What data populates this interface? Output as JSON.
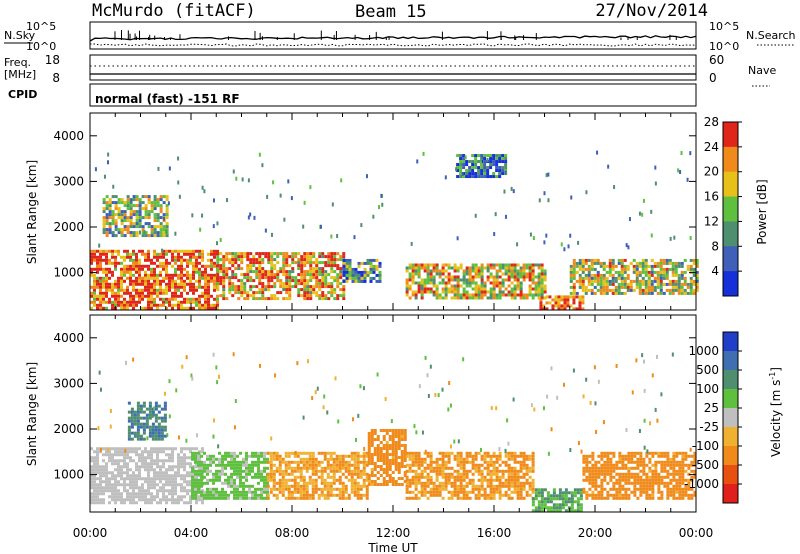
{
  "header": {
    "station": "McMurdo (fitACF)",
    "beam": "Beam 15",
    "date": "27/Nov/2014"
  },
  "top_panels": {
    "nsky_label": "N.Sky",
    "nsky_ticks": [
      "10^5",
      "10^0"
    ],
    "nsearch_label": "N.Search",
    "nsearch_ticks": [
      "10^5",
      "10^0"
    ],
    "freq_label": "Freq.",
    "freq_unit": "[MHz]",
    "freq_ticks": [
      "18",
      "8"
    ],
    "nave_label": "Nave",
    "nave_ticks": [
      "60",
      "0"
    ],
    "cpid_label": "CPID",
    "cpid_value": "normal (fast) -151 RF"
  },
  "chart_data": [
    {
      "type": "heatmap",
      "panel": "power",
      "xlabel": "Time UT",
      "x_ticks": [
        "00:00",
        "04:00",
        "08:00",
        "12:00",
        "16:00",
        "20:00",
        "00:00"
      ],
      "xlim_hours": [
        0,
        24
      ],
      "ylabel": "Slant Range [km]",
      "y_ticks": [
        1000,
        2000,
        3000,
        4000
      ],
      "ylim": [
        180,
        4500
      ],
      "colorbar_label": "Power [dB]",
      "colorbar_ticks": [
        4,
        8,
        12,
        16,
        20,
        24,
        28
      ],
      "colorbar_colors": [
        "#1530d8",
        "#3f5fb8",
        "#4d8f6f",
        "#5fc03f",
        "#e8c01a",
        "#f08a1a",
        "#e0261a"
      ],
      "scatter_regions": [
        {
          "t0": 0.0,
          "t1": 5.0,
          "r0": 250,
          "r1": 1500,
          "level": 24
        },
        {
          "t0": 0.5,
          "t1": 3.0,
          "r0": 1800,
          "r1": 2700,
          "level": 14
        },
        {
          "t0": 5.0,
          "t1": 10.0,
          "r0": 450,
          "r1": 1450,
          "level": 20
        },
        {
          "t0": 10.0,
          "t1": 11.5,
          "r0": 800,
          "r1": 1300,
          "level": 10
        },
        {
          "t0": 12.5,
          "t1": 18.0,
          "r0": 450,
          "r1": 1200,
          "level": 18
        },
        {
          "t0": 17.8,
          "t1": 19.5,
          "r0": 200,
          "r1": 500,
          "level": 26
        },
        {
          "t0": 19.0,
          "t1": 24.0,
          "r0": 550,
          "r1": 1300,
          "level": 16
        },
        {
          "t0": 14.5,
          "t1": 16.5,
          "r0": 3100,
          "r1": 3600,
          "level": 6
        }
      ]
    },
    {
      "type": "heatmap",
      "panel": "velocity",
      "xlabel": "Time UT",
      "x_ticks": [
        "00:00",
        "04:00",
        "08:00",
        "12:00",
        "16:00",
        "20:00",
        "00:00"
      ],
      "xlim_hours": [
        0,
        24
      ],
      "ylabel": "Slant Range [km]",
      "y_ticks": [
        1000,
        2000,
        3000,
        4000
      ],
      "ylim": [
        180,
        4500
      ],
      "colorbar_label": "Velocity [m s",
      "colorbar_label_sup": "-1",
      "colorbar_label_end": "]",
      "colorbar_ticks": [
        "1000",
        "500",
        "100",
        "25",
        "-25",
        "-100",
        "-500",
        "-1000"
      ],
      "colorbar_colors": [
        "#1f3fc8",
        "#3f6fb0",
        "#4f8f6f",
        "#5fc03f",
        "#bfbfbf",
        "#f0b030",
        "#f08a1a",
        "#e85010",
        "#e0201a"
      ],
      "scatter_regions": [
        {
          "t0": 0.0,
          "t1": 4.5,
          "r0": 400,
          "r1": 1600,
          "level": 1
        },
        {
          "t0": 1.5,
          "t1": 3.0,
          "r0": 1800,
          "r1": 2600,
          "level": 500
        },
        {
          "t0": 4.0,
          "t1": 7.0,
          "r0": 500,
          "r1": 1500,
          "level": 50
        },
        {
          "t0": 7.0,
          "t1": 11.0,
          "r0": 500,
          "r1": 1500,
          "level": -100
        },
        {
          "t0": 11.0,
          "t1": 12.5,
          "r0": 800,
          "r1": 2000,
          "level": -200
        },
        {
          "t0": 12.5,
          "t1": 17.5,
          "r0": 500,
          "r1": 1500,
          "level": -120
        },
        {
          "t0": 17.5,
          "t1": 19.5,
          "r0": 200,
          "r1": 700,
          "level": 100
        },
        {
          "t0": 19.5,
          "t1": 24.0,
          "r0": 500,
          "r1": 1500,
          "level": -200
        }
      ]
    }
  ]
}
